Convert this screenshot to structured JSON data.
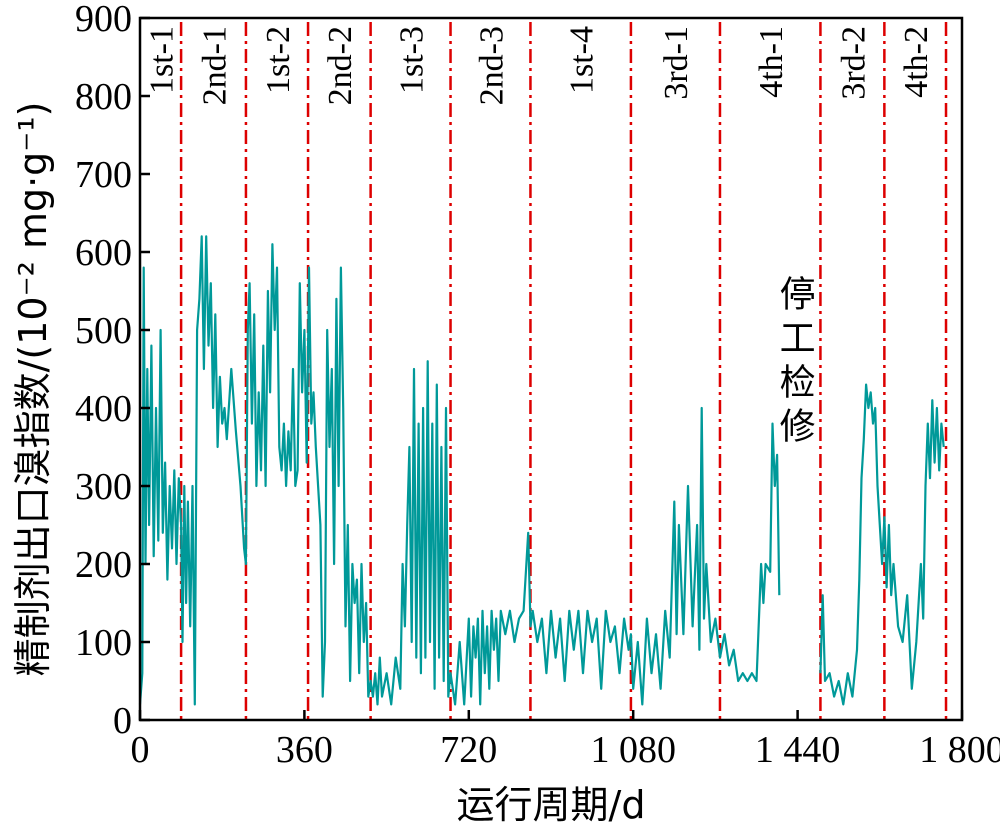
{
  "chart_data": {
    "type": "line",
    "xlabel": "运行周期/d",
    "ylabel": "精制剂出口溴指数/(10⁻² mg·g⁻¹)",
    "xlim": [
      0,
      1800
    ],
    "ylim": [
      0,
      900
    ],
    "x_ticks": [
      {
        "value": 0,
        "label": "0"
      },
      {
        "value": 360,
        "label": "360"
      },
      {
        "value": 720,
        "label": "720"
      },
      {
        "value": 1080,
        "label": "1 080"
      },
      {
        "value": 1440,
        "label": "1 440"
      },
      {
        "value": 1800,
        "label": "1 800"
      }
    ],
    "y_ticks": [
      0,
      100,
      200,
      300,
      400,
      500,
      600,
      700,
      800,
      900
    ],
    "line_color": "#009999",
    "boundary_color": "#dd0000",
    "phase_boundaries": [
      90,
      232,
      368,
      505,
      680,
      855,
      1075,
      1270,
      1490,
      1630,
      1765
    ],
    "phases": [
      {
        "label": "1st-1",
        "x": 45
      },
      {
        "label": "2nd-1",
        "x": 161
      },
      {
        "label": "1st-2",
        "x": 300
      },
      {
        "label": "2nd-2",
        "x": 436
      },
      {
        "label": "1st-3",
        "x": 592
      },
      {
        "label": "2nd-3",
        "x": 767
      },
      {
        "label": "1st-4",
        "x": 965
      },
      {
        "label": "3rd-1",
        "x": 1172
      },
      {
        "label": "4th-1",
        "x": 1380
      },
      {
        "label": "3rd-2",
        "x": 1560
      },
      {
        "label": "4th-2",
        "x": 1697
      }
    ],
    "annotation": {
      "text": [
        "停",
        "工",
        "检",
        "修"
      ],
      "x": 1440,
      "y": 530
    },
    "series": [
      {
        "points": [
          [
            0,
            20
          ],
          [
            5,
            60
          ],
          [
            8,
            580
          ],
          [
            12,
            200
          ],
          [
            16,
            450
          ],
          [
            20,
            250
          ],
          [
            25,
            480
          ],
          [
            30,
            210
          ],
          [
            35,
            400
          ],
          [
            40,
            230
          ],
          [
            45,
            500
          ],
          [
            50,
            240
          ],
          [
            55,
            330
          ],
          [
            60,
            180
          ],
          [
            65,
            300
          ],
          [
            70,
            220
          ],
          [
            75,
            320
          ],
          [
            80,
            200
          ],
          [
            85,
            310
          ],
          [
            90,
            250
          ],
          [
            93,
            100
          ],
          [
            97,
            300
          ],
          [
            101,
            150
          ],
          [
            105,
            280
          ],
          [
            110,
            120
          ],
          [
            115,
            300
          ],
          [
            120,
            20
          ],
          [
            125,
            500
          ],
          [
            130,
            540
          ],
          [
            135,
            620
          ],
          [
            140,
            450
          ],
          [
            145,
            620
          ],
          [
            150,
            480
          ],
          [
            155,
            560
          ],
          [
            160,
            400
          ],
          [
            165,
            520
          ],
          [
            170,
            350
          ],
          [
            175,
            440
          ],
          [
            180,
            380
          ],
          [
            185,
            400
          ],
          [
            190,
            360
          ],
          [
            200,
            450
          ],
          [
            210,
            370
          ],
          [
            220,
            300
          ],
          [
            228,
            220
          ],
          [
            232,
            200
          ],
          [
            236,
            500
          ],
          [
            240,
            560
          ],
          [
            245,
            380
          ],
          [
            250,
            520
          ],
          [
            255,
            300
          ],
          [
            260,
            420
          ],
          [
            265,
            320
          ],
          [
            270,
            480
          ],
          [
            275,
            300
          ],
          [
            280,
            550
          ],
          [
            285,
            420
          ],
          [
            290,
            610
          ],
          [
            295,
            500
          ],
          [
            300,
            580
          ],
          [
            305,
            350
          ],
          [
            310,
            320
          ],
          [
            315,
            380
          ],
          [
            320,
            300
          ],
          [
            325,
            370
          ],
          [
            330,
            320
          ],
          [
            335,
            450
          ],
          [
            340,
            300
          ],
          [
            345,
            320
          ],
          [
            350,
            560
          ],
          [
            355,
            420
          ],
          [
            360,
            500
          ],
          [
            365,
            330
          ],
          [
            370,
            580
          ],
          [
            375,
            380
          ],
          [
            380,
            420
          ],
          [
            385,
            350
          ],
          [
            390,
            300
          ],
          [
            395,
            250
          ],
          [
            400,
            30
          ],
          [
            405,
            100
          ],
          [
            410,
            500
          ],
          [
            415,
            350
          ],
          [
            420,
            450
          ],
          [
            425,
            200
          ],
          [
            430,
            540
          ],
          [
            435,
            300
          ],
          [
            440,
            580
          ],
          [
            445,
            400
          ],
          [
            450,
            120
          ],
          [
            455,
            250
          ],
          [
            460,
            50
          ],
          [
            465,
            200
          ],
          [
            470,
            150
          ],
          [
            475,
            180
          ],
          [
            480,
            60
          ],
          [
            485,
            200
          ],
          [
            490,
            100
          ],
          [
            495,
            150
          ],
          [
            500,
            30
          ],
          [
            505,
            50
          ],
          [
            510,
            30
          ],
          [
            515,
            60
          ],
          [
            520,
            20
          ],
          [
            525,
            80
          ],
          [
            530,
            30
          ],
          [
            540,
            60
          ],
          [
            550,
            20
          ],
          [
            560,
            80
          ],
          [
            570,
            40
          ],
          [
            575,
            200
          ],
          [
            580,
            120
          ],
          [
            585,
            250
          ],
          [
            590,
            350
          ],
          [
            595,
            100
          ],
          [
            600,
            450
          ],
          [
            605,
            80
          ],
          [
            610,
            380
          ],
          [
            615,
            60
          ],
          [
            620,
            400
          ],
          [
            625,
            80
          ],
          [
            630,
            460
          ],
          [
            635,
            100
          ],
          [
            640,
            380
          ],
          [
            645,
            40
          ],
          [
            650,
            430
          ],
          [
            655,
            80
          ],
          [
            660,
            350
          ],
          [
            665,
            50
          ],
          [
            670,
            400
          ],
          [
            675,
            30
          ],
          [
            680,
            60
          ],
          [
            690,
            20
          ],
          [
            700,
            100
          ],
          [
            710,
            20
          ],
          [
            720,
            130
          ],
          [
            725,
            30
          ],
          [
            730,
            120
          ],
          [
            735,
            80
          ],
          [
            740,
            130
          ],
          [
            745,
            20
          ],
          [
            750,
            140
          ],
          [
            755,
            60
          ],
          [
            760,
            120
          ],
          [
            765,
            40
          ],
          [
            770,
            140
          ],
          [
            775,
            90
          ],
          [
            780,
            130
          ],
          [
            785,
            50
          ],
          [
            790,
            140
          ],
          [
            800,
            110
          ],
          [
            810,
            140
          ],
          [
            820,
            100
          ],
          [
            830,
            130
          ],
          [
            840,
            140
          ],
          [
            850,
            240
          ],
          [
            855,
            120
          ],
          [
            860,
            140
          ],
          [
            870,
            100
          ],
          [
            880,
            130
          ],
          [
            890,
            60
          ],
          [
            900,
            140
          ],
          [
            910,
            80
          ],
          [
            920,
            130
          ],
          [
            930,
            50
          ],
          [
            940,
            140
          ],
          [
            950,
            90
          ],
          [
            960,
            140
          ],
          [
            970,
            60
          ],
          [
            980,
            140
          ],
          [
            990,
            100
          ],
          [
            1000,
            130
          ],
          [
            1010,
            40
          ],
          [
            1020,
            140
          ],
          [
            1030,
            100
          ],
          [
            1040,
            120
          ],
          [
            1050,
            60
          ],
          [
            1060,
            130
          ],
          [
            1070,
            90
          ],
          [
            1075,
            110
          ],
          [
            1080,
            40
          ],
          [
            1090,
            100
          ],
          [
            1100,
            20
          ],
          [
            1110,
            130
          ],
          [
            1120,
            60
          ],
          [
            1130,
            110
          ],
          [
            1140,
            40
          ],
          [
            1150,
            140
          ],
          [
            1160,
            80
          ],
          [
            1170,
            280
          ],
          [
            1175,
            110
          ],
          [
            1180,
            250
          ],
          [
            1190,
            110
          ],
          [
            1200,
            300
          ],
          [
            1210,
            120
          ],
          [
            1220,
            250
          ],
          [
            1225,
            90
          ],
          [
            1230,
            400
          ],
          [
            1235,
            130
          ],
          [
            1240,
            200
          ],
          [
            1250,
            100
          ],
          [
            1260,
            130
          ],
          [
            1270,
            80
          ],
          [
            1280,
            110
          ],
          [
            1290,
            70
          ],
          [
            1300,
            90
          ],
          [
            1310,
            50
          ],
          [
            1320,
            60
          ],
          [
            1330,
            50
          ],
          [
            1340,
            60
          ],
          [
            1350,
            50
          ],
          [
            1360,
            200
          ],
          [
            1365,
            150
          ],
          [
            1370,
            200
          ],
          [
            1380,
            190
          ],
          [
            1385,
            380
          ],
          [
            1390,
            300
          ],
          [
            1395,
            340
          ],
          [
            1400,
            160
          ],
          [
            1490,
            60
          ],
          [
            1495,
            160
          ],
          [
            1500,
            50
          ],
          [
            1510,
            60
          ],
          [
            1520,
            30
          ],
          [
            1530,
            50
          ],
          [
            1540,
            20
          ],
          [
            1550,
            60
          ],
          [
            1560,
            30
          ],
          [
            1570,
            90
          ],
          [
            1575,
            180
          ],
          [
            1580,
            310
          ],
          [
            1585,
            360
          ],
          [
            1590,
            430
          ],
          [
            1595,
            400
          ],
          [
            1600,
            420
          ],
          [
            1605,
            380
          ],
          [
            1610,
            400
          ],
          [
            1615,
            300
          ],
          [
            1620,
            250
          ],
          [
            1625,
            200
          ],
          [
            1630,
            260
          ],
          [
            1635,
            170
          ],
          [
            1640,
            250
          ],
          [
            1645,
            160
          ],
          [
            1650,
            200
          ],
          [
            1660,
            120
          ],
          [
            1670,
            100
          ],
          [
            1680,
            160
          ],
          [
            1690,
            40
          ],
          [
            1700,
            100
          ],
          [
            1710,
            200
          ],
          [
            1715,
            130
          ],
          [
            1720,
            300
          ],
          [
            1725,
            380
          ],
          [
            1730,
            310
          ],
          [
            1735,
            410
          ],
          [
            1740,
            330
          ],
          [
            1745,
            400
          ],
          [
            1750,
            320
          ],
          [
            1755,
            380
          ],
          [
            1760,
            350
          ]
        ]
      }
    ]
  }
}
